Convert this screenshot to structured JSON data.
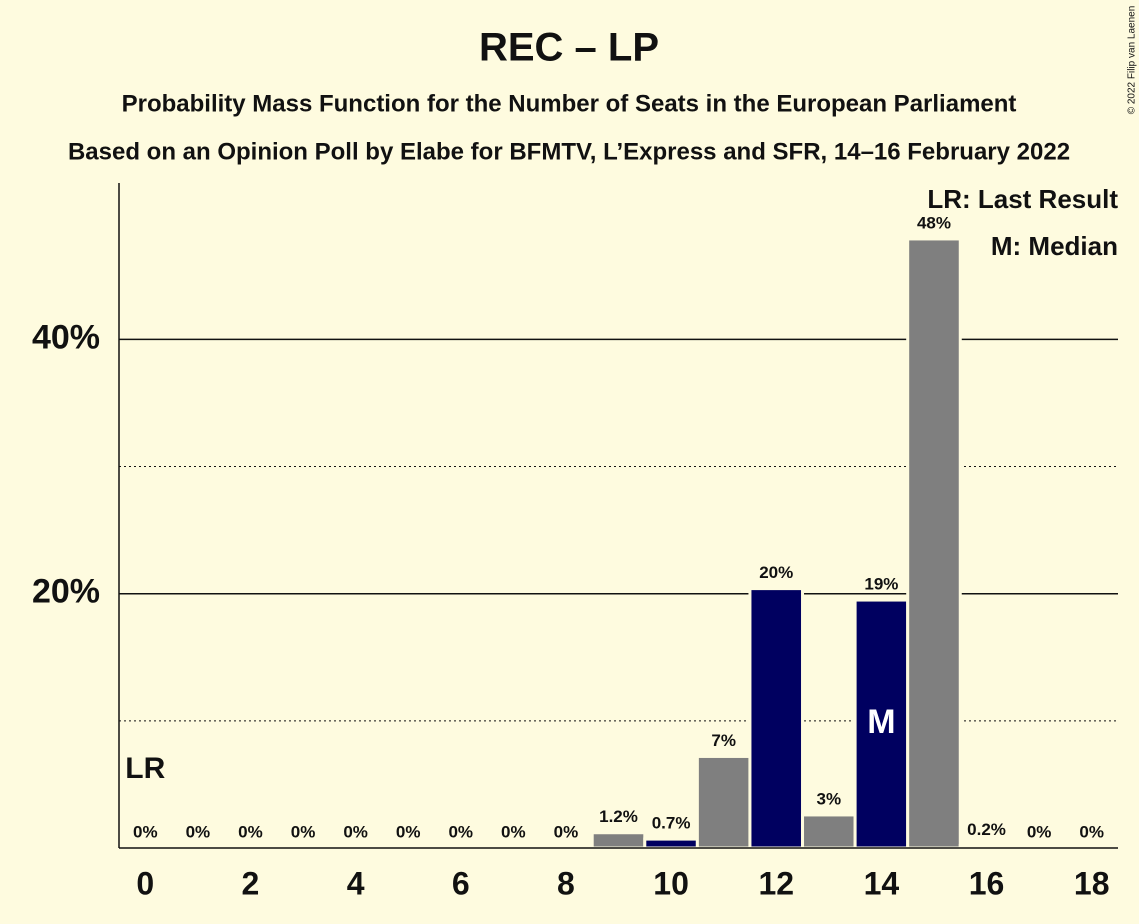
{
  "chart_data": {
    "type": "bar",
    "title": "REC – LP",
    "subtitle": "Probability Mass Function for the Number of Seats in the European Parliament",
    "subtitle2": "Based on an Opinion Poll by Elabe for BFMTV, L’Express and SFR, 14–16 February 2022",
    "copyright": "© 2022 Filip van Laenen",
    "categories": [
      0,
      null,
      2,
      null,
      4,
      null,
      6,
      null,
      8,
      null,
      10,
      null,
      12,
      null,
      14,
      null,
      16,
      null,
      18
    ],
    "values": [
      0,
      0,
      0,
      0,
      0,
      0,
      0,
      0,
      0,
      1.2,
      0.7,
      7.2,
      20.4,
      2.6,
      19.5,
      47.9,
      0.2,
      0,
      0
    ],
    "value_labels": [
      "0%",
      "0%",
      "0%",
      "0%",
      "0%",
      "0%",
      "0%",
      "0%",
      "0%",
      "1.2%",
      "0.7%",
      "7%",
      "20%",
      "3%",
      "19%",
      "48%",
      "0.2%",
      "0%",
      "0%"
    ],
    "colors": [
      "#7f7f7f",
      "#7f7f7f",
      "#7f7f7f",
      "#7f7f7f",
      "#7f7f7f",
      "#7f7f7f",
      "#7f7f7f",
      "#7f7f7f",
      "#7f7f7f",
      "#7f7f7f",
      "#000060",
      "#7f7f7f",
      "#000060",
      "#7f7f7f",
      "#000060",
      "#7f7f7f",
      "#7f7f7f",
      "#7f7f7f",
      "#7f7f7f"
    ],
    "ylim": [
      0,
      52.3
    ],
    "yticks": [
      {
        "value": 20,
        "label": "20%"
      },
      {
        "value": 40,
        "label": "40%"
      }
    ],
    "minor_yticks": [
      10,
      30
    ],
    "grid": true,
    "annotations": {
      "last_result": {
        "label": "LR",
        "x": 0
      },
      "median": {
        "label": "M",
        "x": 14
      }
    },
    "legend": [
      "LR: Last Result",
      "M: Median"
    ]
  }
}
